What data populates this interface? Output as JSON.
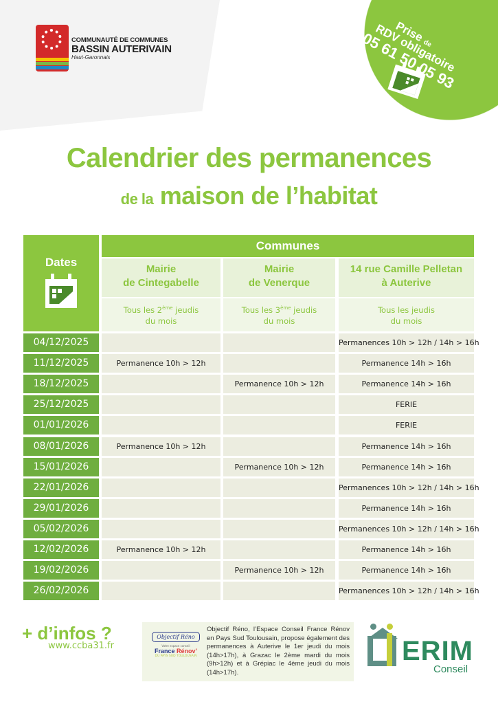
{
  "logo": {
    "line1": "COMMUNAUTÉ DE COMMUNES",
    "line2": "BASSIN AUTERIVAIN",
    "line3": "Haut-Garonnais"
  },
  "badge": {
    "line1": "Prise",
    "line1_small": "de",
    "line2": "RDV obligatoire",
    "phone": "05 61 50 05 93",
    "icon": "calendar-icon"
  },
  "title": {
    "line1": "Calendrier des permanences",
    "line2_prefix": "de la",
    "line2": "maison de l’habitat"
  },
  "table": {
    "dates_header": "Dates",
    "communes_header": "Communes",
    "columns": [
      {
        "name1": "Mairie",
        "name2": "de Cintegabelle",
        "sub1a": "Tous les 2",
        "sub1sup": "ème",
        "sub1b": " jeudis",
        "sub2": "du mois"
      },
      {
        "name1": "Mairie",
        "name2": "de Venerque",
        "sub1a": "Tous les 3",
        "sub1sup": "ème",
        "sub1b": " jeudis",
        "sub2": "du mois"
      },
      {
        "name1": "14 rue Camille Pelletan",
        "name2": "à Auterive",
        "sub1a": "Tous les jeudis",
        "sub1sup": "",
        "sub1b": "",
        "sub2": "du mois"
      }
    ],
    "rows": [
      {
        "date": "04/12/2025",
        "c1": "",
        "c2": "",
        "c3": "Permanences 10h > 12h / 14h > 16h"
      },
      {
        "date": "11/12/2025",
        "c1": "Permanence 10h > 12h",
        "c2": "",
        "c3": "Permanence 14h > 16h"
      },
      {
        "date": "18/12/2025",
        "c1": "",
        "c2": "Permanence 10h > 12h",
        "c3": "Permanence 14h > 16h"
      },
      {
        "date": "25/12/2025",
        "c1": "",
        "c2": "",
        "c3": "FERIE"
      },
      {
        "date": "01/01/2026",
        "c1": "",
        "c2": "",
        "c3": "FERIE"
      },
      {
        "date": "08/01/2026",
        "c1": "Permanence 10h > 12h",
        "c2": "",
        "c3": "Permanence 14h > 16h"
      },
      {
        "date": "15/01/2026",
        "c1": "",
        "c2": "Permanence 10h > 12h",
        "c3": "Permanence 14h > 16h"
      },
      {
        "date": "22/01/2026",
        "c1": "",
        "c2": "",
        "c3": "Permanences 10h > 12h / 14h > 16h"
      },
      {
        "date": "29/01/2026",
        "c1": "",
        "c2": "",
        "c3": "Permanence 14h > 16h"
      },
      {
        "date": "05/02/2026",
        "c1": "",
        "c2": "",
        "c3": "Permanences 10h > 12h / 14h > 16h"
      },
      {
        "date": "12/02/2026",
        "c1": "Permanence 10h > 12h",
        "c2": "",
        "c3": "Permanence 14h > 16h"
      },
      {
        "date": "19/02/2026",
        "c1": "",
        "c2": "Permanence 10h > 12h",
        "c3": "Permanence 14h > 16h"
      },
      {
        "date": "26/02/2026",
        "c1": "",
        "c2": "",
        "c3": "Permanences 10h > 12h / 14h > 16h"
      }
    ]
  },
  "footer": {
    "infos": "+ d’infos ?",
    "url": "www.ccba31.fr",
    "reno_logo": {
      "objectif": "Objectif Réno",
      "sub": "Votre espace conseil",
      "france": "France",
      "renov": "Rénov’",
      "pays": "DU PAYS SUD TOULOUSAIN"
    },
    "reno_text": "Objectif Réno, l’Espace Conseil France Rénov en Pays Sud Toulousain, propose également des permanences à Auterive le 1er jeudi du mois (14h>17h), à Grazac le 2ème mardi du mois (9h>12h) et à Grépiac le 4ème jeudi du mois (14h>17h).",
    "erim": {
      "name": "ERIM",
      "sub": "Conseil"
    }
  },
  "colors": {
    "green": "#8cc63f",
    "dark_green": "#6fae3f",
    "cell": "#ecede0",
    "logo_red": "#d32a2a",
    "erim_green": "#2e8a5e"
  }
}
